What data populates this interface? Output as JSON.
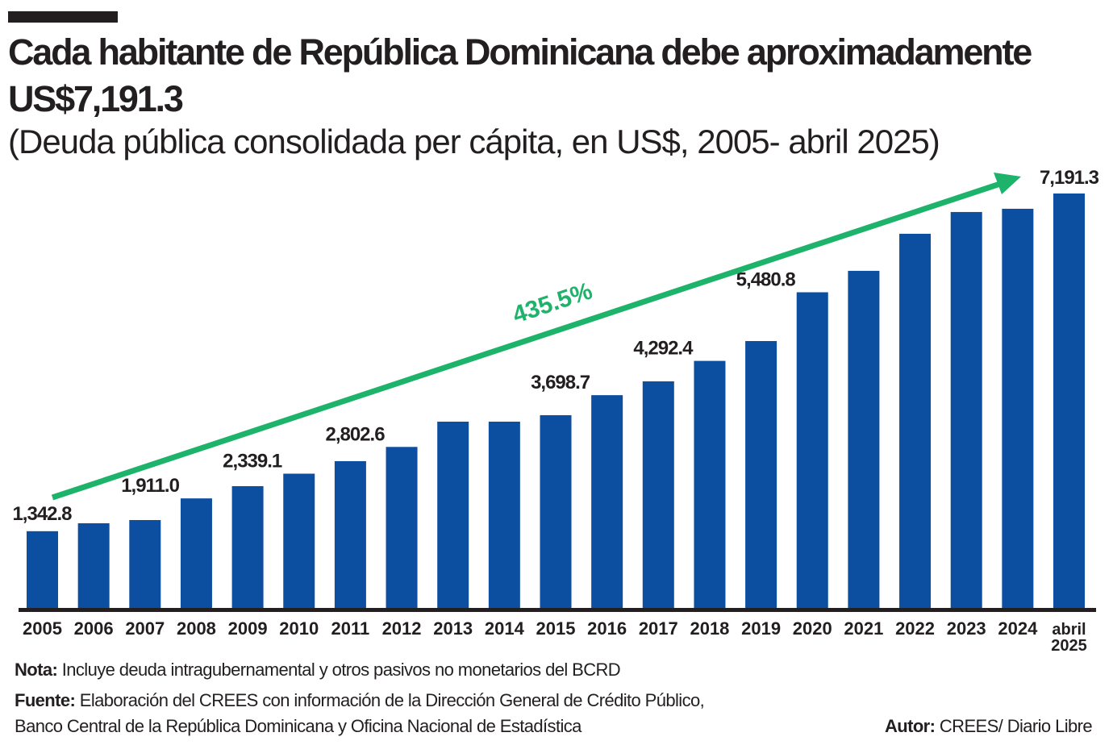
{
  "header": {
    "title": "Cada habitante de República Dominicana debe aproximadamente US$7,191.3",
    "subtitle": "(Deuda pública consolidada per cápita, en US$, 2005- abril 2025)"
  },
  "chart_data": {
    "type": "bar",
    "categories": [
      "2005",
      "2006",
      "2007",
      "2008",
      "2009",
      "2010",
      "2011",
      "2012",
      "2013",
      "2014",
      "2015",
      "2016",
      "2017",
      "2018",
      "2019",
      "2020",
      "2021",
      "2022",
      "2023",
      "2024",
      "abril 2025"
    ],
    "values": [
      1342.8,
      1480,
      1536,
      1911.0,
      2123,
      2339.1,
      2556,
      2802.6,
      3240,
      3240,
      3352,
      3698.7,
      3938,
      4292.4,
      4636,
      5480.8,
      5852,
      6494,
      6871,
      6927,
      7191.3
    ],
    "data_labels": {
      "0": "1,342.8",
      "3": "1,911.0",
      "5": "2,339.1",
      "7": "2,802.6",
      "11": "3,698.7",
      "13": "4,292.4",
      "15": "5,480.8",
      "20": "7,191.3"
    },
    "annotation": "435.5%",
    "ylim": [
      0,
      7191.3
    ],
    "grid": false,
    "colors": {
      "bar": "#0c4ea0",
      "arrow": "#1db36b",
      "axis": "#231f20"
    }
  },
  "footer": {
    "nota_label": "Nota:",
    "nota_text": " Incluye deuda intragubernamental y otros pasivos no monetarios del BCRD",
    "fuente_label": "Fuente:",
    "fuente_text_1": " Elaboración del CREES con información de la Dirección General de Crédito Público,",
    "fuente_text_2": "Banco Central de la República Dominicana y Oficina Nacional de Estadística",
    "autor_label": "Autor:",
    "autor_text": " CREES/ Diario Libre"
  }
}
